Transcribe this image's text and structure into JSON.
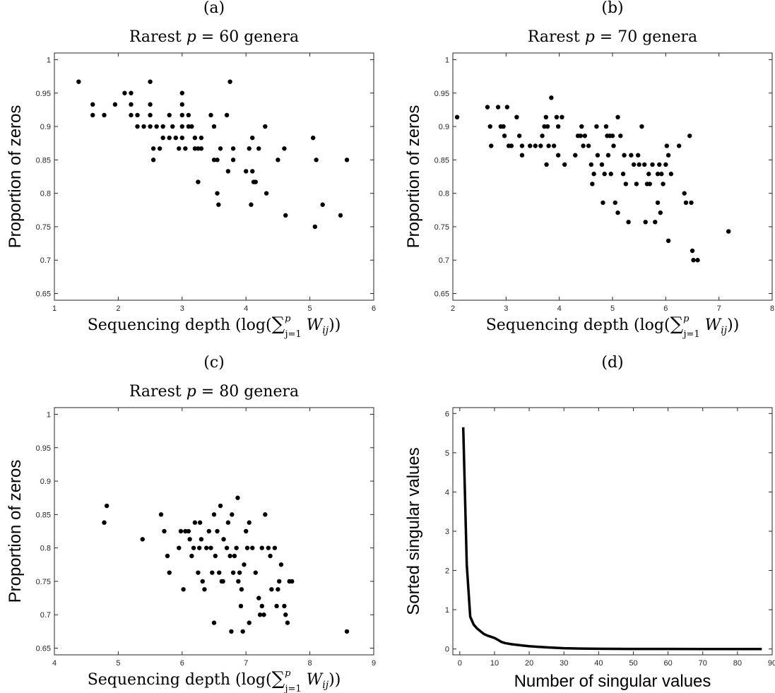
{
  "chart_data": [
    {
      "panel": "(a)",
      "type": "scatter",
      "title": "Rarest p = 60 genera",
      "xlabel": "Sequencing depth (log(∑_{j=1}^{p} W_ij))",
      "ylabel": "Proportion of zeros",
      "xlim": [
        1,
        6
      ],
      "ylim": [
        0.64,
        1.01
      ],
      "xticks": [
        "1",
        "2",
        "3",
        "4",
        "5",
        "6"
      ],
      "yticks": [
        "0.65",
        "0.7",
        "0.75",
        "0.8",
        "0.85",
        "0.9",
        "0.95",
        "1"
      ],
      "grid": false,
      "points": [
        [
          1.38,
          0.967
        ],
        [
          1.6,
          0.933
        ],
        [
          1.6,
          0.917
        ],
        [
          1.78,
          0.917
        ],
        [
          1.95,
          0.933
        ],
        [
          2.1,
          0.95
        ],
        [
          2.2,
          0.95
        ],
        [
          2.2,
          0.933
        ],
        [
          2.2,
          0.917
        ],
        [
          2.3,
          0.917
        ],
        [
          2.3,
          0.9
        ],
        [
          2.4,
          0.9
        ],
        [
          2.5,
          0.967
        ],
        [
          2.5,
          0.933
        ],
        [
          2.5,
          0.917
        ],
        [
          2.5,
          0.9
        ],
        [
          2.55,
          0.867
        ],
        [
          2.55,
          0.85
        ],
        [
          2.6,
          0.9
        ],
        [
          2.65,
          0.867
        ],
        [
          2.7,
          0.9
        ],
        [
          2.7,
          0.883
        ],
        [
          2.8,
          0.883
        ],
        [
          2.8,
          0.917
        ],
        [
          2.85,
          0.9
        ],
        [
          2.9,
          0.883
        ],
        [
          2.95,
          0.867
        ],
        [
          3.0,
          0.95
        ],
        [
          3.0,
          0.933
        ],
        [
          3.0,
          0.917
        ],
        [
          3.0,
          0.9
        ],
        [
          3.0,
          0.883
        ],
        [
          3.05,
          0.867
        ],
        [
          3.1,
          0.9
        ],
        [
          3.1,
          0.917
        ],
        [
          3.15,
          0.9
        ],
        [
          3.2,
          0.867
        ],
        [
          3.2,
          0.883
        ],
        [
          3.25,
          0.867
        ],
        [
          3.3,
          0.883
        ],
        [
          3.3,
          0.867
        ],
        [
          3.25,
          0.817
        ],
        [
          3.45,
          0.917
        ],
        [
          3.5,
          0.85
        ],
        [
          3.5,
          0.9
        ],
        [
          3.55,
          0.85
        ],
        [
          3.55,
          0.8
        ],
        [
          3.57,
          0.783
        ],
        [
          3.6,
          0.867
        ],
        [
          3.7,
          0.917
        ],
        [
          3.72,
          0.833
        ],
        [
          3.75,
          0.967
        ],
        [
          3.8,
          0.867
        ],
        [
          3.8,
          0.85
        ],
        [
          4.0,
          0.833
        ],
        [
          4.05,
          0.867
        ],
        [
          4.08,
          0.783
        ],
        [
          4.1,
          0.883
        ],
        [
          4.1,
          0.833
        ],
        [
          4.12,
          0.817
        ],
        [
          4.15,
          0.817
        ],
        [
          4.2,
          0.867
        ],
        [
          4.3,
          0.9
        ],
        [
          4.32,
          0.8
        ],
        [
          4.5,
          0.85
        ],
        [
          4.6,
          0.867
        ],
        [
          4.62,
          0.767
        ],
        [
          5.05,
          0.883
        ],
        [
          5.08,
          0.75
        ],
        [
          5.1,
          0.85
        ],
        [
          5.2,
          0.783
        ],
        [
          5.48,
          0.767
        ],
        [
          5.58,
          0.85
        ]
      ]
    },
    {
      "panel": "(b)",
      "type": "scatter",
      "title": "Rarest p = 70 genera",
      "xlabel": "Sequencing depth (log(∑_{j=1}^{p} W_ij))",
      "ylabel": "Proportion of zeros",
      "xlim": [
        2,
        8
      ],
      "ylim": [
        0.64,
        1.01
      ],
      "xticks": [
        "2",
        "3",
        "4",
        "5",
        "6",
        "7",
        "8"
      ],
      "yticks": [
        "0.65",
        "0.7",
        "0.75",
        "0.8",
        "0.85",
        "0.9",
        "0.95",
        "1"
      ],
      "grid": false,
      "points": [
        [
          2.08,
          0.914
        ],
        [
          2.65,
          0.929
        ],
        [
          2.7,
          0.9
        ],
        [
          2.72,
          0.871
        ],
        [
          2.85,
          0.929
        ],
        [
          2.9,
          0.9
        ],
        [
          2.95,
          0.9
        ],
        [
          2.97,
          0.886
        ],
        [
          3.02,
          0.929
        ],
        [
          3.05,
          0.871
        ],
        [
          3.1,
          0.871
        ],
        [
          3.2,
          0.914
        ],
        [
          3.25,
          0.886
        ],
        [
          3.3,
          0.857
        ],
        [
          3.3,
          0.871
        ],
        [
          3.45,
          0.871
        ],
        [
          3.55,
          0.871
        ],
        [
          3.65,
          0.871
        ],
        [
          3.68,
          0.886
        ],
        [
          3.72,
          0.9
        ],
        [
          3.75,
          0.914
        ],
        [
          3.76,
          0.843
        ],
        [
          3.78,
          0.9
        ],
        [
          3.8,
          0.871
        ],
        [
          3.85,
          0.943
        ],
        [
          3.9,
          0.871
        ],
        [
          3.95,
          0.914
        ],
        [
          3.98,
          0.857
        ],
        [
          3.98,
          0.9
        ],
        [
          4.05,
          0.914
        ],
        [
          4.1,
          0.843
        ],
        [
          4.3,
          0.857
        ],
        [
          4.35,
          0.886
        ],
        [
          4.4,
          0.886
        ],
        [
          4.42,
          0.9
        ],
        [
          4.45,
          0.871
        ],
        [
          4.48,
          0.886
        ],
        [
          4.55,
          0.871
        ],
        [
          4.6,
          0.843
        ],
        [
          4.65,
          0.829
        ],
        [
          4.62,
          0.814
        ],
        [
          4.7,
          0.9
        ],
        [
          4.72,
          0.857
        ],
        [
          4.8,
          0.843
        ],
        [
          4.82,
          0.786
        ],
        [
          4.85,
          0.829
        ],
        [
          4.88,
          0.9
        ],
        [
          4.9,
          0.886
        ],
        [
          4.92,
          0.857
        ],
        [
          4.95,
          0.886
        ],
        [
          4.97,
          0.829
        ],
        [
          5.0,
          0.886
        ],
        [
          5.02,
          0.871
        ],
        [
          5.05,
          0.786
        ],
        [
          5.1,
          0.914
        ],
        [
          5.1,
          0.771
        ],
        [
          5.15,
          0.886
        ],
        [
          5.2,
          0.829
        ],
        [
          5.25,
          0.814
        ],
        [
          5.22,
          0.857
        ],
        [
          5.3,
          0.757
        ],
        [
          5.35,
          0.857
        ],
        [
          5.4,
          0.843
        ],
        [
          5.45,
          0.814
        ],
        [
          5.48,
          0.857
        ],
        [
          5.5,
          0.843
        ],
        [
          5.55,
          0.9
        ],
        [
          5.6,
          0.843
        ],
        [
          5.62,
          0.757
        ],
        [
          5.65,
          0.814
        ],
        [
          5.68,
          0.829
        ],
        [
          5.7,
          0.814
        ],
        [
          5.75,
          0.843
        ],
        [
          5.8,
          0.757
        ],
        [
          5.85,
          0.829
        ],
        [
          5.88,
          0.843
        ],
        [
          5.85,
          0.786
        ],
        [
          5.9,
          0.771
        ],
        [
          5.92,
          0.829
        ],
        [
          5.95,
          0.814
        ],
        [
          6.0,
          0.843
        ],
        [
          6.02,
          0.871
        ],
        [
          6.05,
          0.857
        ],
        [
          6.05,
          0.729
        ],
        [
          6.1,
          0.829
        ],
        [
          6.25,
          0.871
        ],
        [
          6.35,
          0.8
        ],
        [
          6.38,
          0.786
        ],
        [
          6.45,
          0.886
        ],
        [
          6.48,
          0.786
        ],
        [
          6.5,
          0.714
        ],
        [
          6.52,
          0.7
        ],
        [
          6.6,
          0.7
        ],
        [
          7.18,
          0.743
        ]
      ]
    },
    {
      "panel": "(c)",
      "type": "scatter",
      "title": "Rarest p = 80 genera",
      "xlabel": "Sequencing depth (log(∑_{j=1}^{p} W_ij))",
      "ylabel": "Proportion of zeros",
      "xlim": [
        4,
        9
      ],
      "ylim": [
        0.64,
        1.01
      ],
      "xticks": [
        "4",
        "5",
        "6",
        "7",
        "8",
        "9"
      ],
      "yticks": [
        "0.65",
        "0.7",
        "0.75",
        "0.8",
        "0.85",
        "0.9",
        "0.95",
        "1"
      ],
      "grid": false,
      "points": [
        [
          4.78,
          0.838
        ],
        [
          4.82,
          0.863
        ],
        [
          5.38,
          0.813
        ],
        [
          5.67,
          0.85
        ],
        [
          5.72,
          0.825
        ],
        [
          5.77,
          0.788
        ],
        [
          5.8,
          0.763
        ],
        [
          5.95,
          0.8
        ],
        [
          5.98,
          0.825
        ],
        [
          6.02,
          0.738
        ],
        [
          6.05,
          0.825
        ],
        [
          6.1,
          0.825
        ],
        [
          6.12,
          0.813
        ],
        [
          6.15,
          0.788
        ],
        [
          6.18,
          0.8
        ],
        [
          6.2,
          0.838
        ],
        [
          6.25,
          0.763
        ],
        [
          6.27,
          0.8
        ],
        [
          6.28,
          0.838
        ],
        [
          6.3,
          0.813
        ],
        [
          6.32,
          0.75
        ],
        [
          6.35,
          0.738
        ],
        [
          6.38,
          0.8
        ],
        [
          6.42,
          0.825
        ],
        [
          6.45,
          0.8
        ],
        [
          6.47,
          0.763
        ],
        [
          6.5,
          0.85
        ],
        [
          6.5,
          0.688
        ],
        [
          6.52,
          0.788
        ],
        [
          6.55,
          0.825
        ],
        [
          6.58,
          0.763
        ],
        [
          6.6,
          0.863
        ],
        [
          6.62,
          0.75
        ],
        [
          6.64,
          0.75
        ],
        [
          6.65,
          0.813
        ],
        [
          6.7,
          0.8
        ],
        [
          6.72,
          0.838
        ],
        [
          6.75,
          0.788
        ],
        [
          6.77,
          0.675
        ],
        [
          6.78,
          0.85
        ],
        [
          6.8,
          0.763
        ],
        [
          6.82,
          0.788
        ],
        [
          6.85,
          0.8
        ],
        [
          6.87,
          0.875
        ],
        [
          6.88,
          0.75
        ],
        [
          6.9,
          0.763
        ],
        [
          6.92,
          0.713
        ],
        [
          6.93,
          0.738
        ],
        [
          6.95,
          0.675
        ],
        [
          6.97,
          0.775
        ],
        [
          7.0,
          0.825
        ],
        [
          7.02,
          0.8
        ],
        [
          7.05,
          0.838
        ],
        [
          7.05,
          0.688
        ],
        [
          7.1,
          0.8
        ],
        [
          7.15,
          0.763
        ],
        [
          7.2,
          0.725
        ],
        [
          7.22,
          0.7
        ],
        [
          7.25,
          0.713
        ],
        [
          7.25,
          0.8
        ],
        [
          7.28,
          0.7
        ],
        [
          7.3,
          0.85
        ],
        [
          7.35,
          0.8
        ],
        [
          7.38,
          0.788
        ],
        [
          7.4,
          0.738
        ],
        [
          7.45,
          0.8
        ],
        [
          7.48,
          0.713
        ],
        [
          7.5,
          0.738
        ],
        [
          7.52,
          0.75
        ],
        [
          7.55,
          0.775
        ],
        [
          7.6,
          0.713
        ],
        [
          7.62,
          0.7
        ],
        [
          7.65,
          0.688
        ],
        [
          7.68,
          0.75
        ],
        [
          7.72,
          0.75
        ],
        [
          8.58,
          0.675
        ]
      ]
    },
    {
      "panel": "(d)",
      "type": "line",
      "title": "",
      "xlabel": "Number of singular values",
      "ylabel": "Sorted singular values",
      "xlim": [
        -2,
        90
      ],
      "ylim": [
        -0.15,
        6.15
      ],
      "xticks": [
        "0",
        "10",
        "20",
        "30",
        "40",
        "50",
        "60",
        "70",
        "80",
        "90"
      ],
      "yticks": [
        "0",
        "1",
        "2",
        "3",
        "4",
        "5",
        "6"
      ],
      "grid": false,
      "x": [
        1,
        2,
        3,
        4,
        5,
        6,
        7,
        8,
        9,
        10,
        11,
        12,
        13,
        15,
        18,
        20,
        25,
        30,
        35,
        40,
        50,
        60,
        70,
        80,
        87
      ],
      "y": [
        5.65,
        2.15,
        0.82,
        0.62,
        0.52,
        0.45,
        0.38,
        0.34,
        0.31,
        0.28,
        0.23,
        0.18,
        0.15,
        0.12,
        0.09,
        0.07,
        0.04,
        0.02,
        0.01,
        0.005,
        0.002,
        0.001,
        0.0,
        0.0,
        0.0
      ]
    }
  ]
}
